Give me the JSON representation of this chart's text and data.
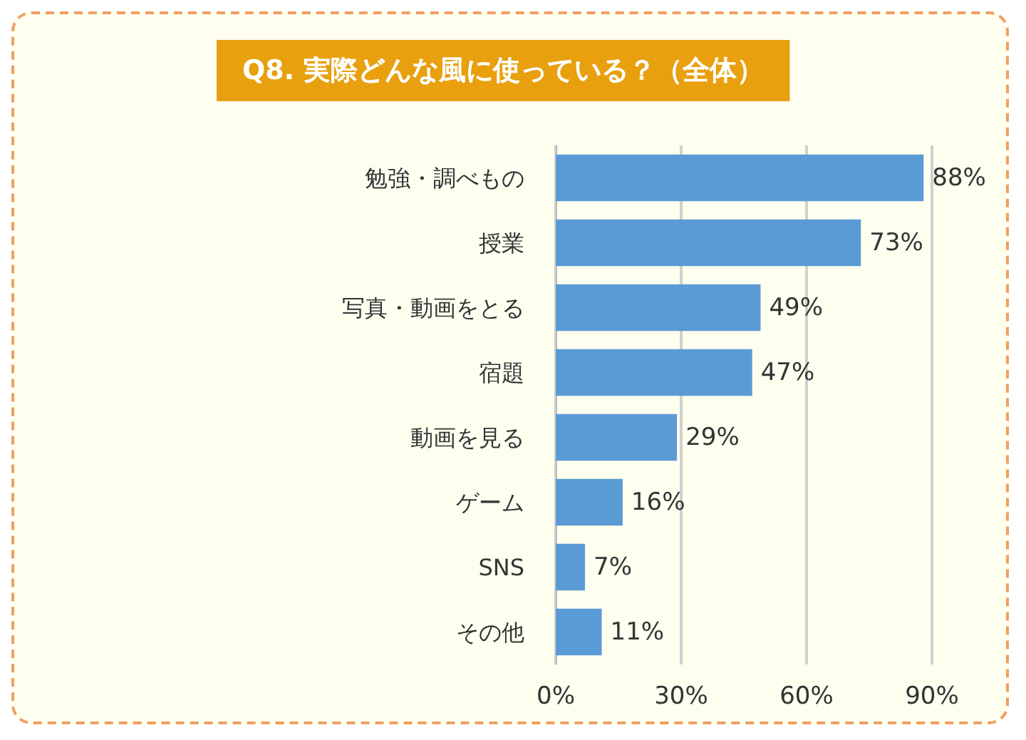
{
  "chart_data": {
    "type": "bar",
    "orientation": "horizontal",
    "title": "Q8. 実際どんな風に使っている？（全体）",
    "categories": [
      "勉強・調べもの",
      "授業",
      "写真・動画をとる",
      "宿題",
      "動画を見る",
      "ゲーム",
      "SNS",
      "その他"
    ],
    "values": [
      88,
      73,
      49,
      47,
      29,
      16,
      7,
      11
    ],
    "value_labels": [
      "88%",
      "73%",
      "49%",
      "47%",
      "29%",
      "16%",
      "7%",
      "11%"
    ],
    "color": "#5b9bd5",
    "xlim": [
      0,
      90
    ],
    "xticks": [
      {
        "value": 0,
        "label": "0%"
      },
      {
        "value": 30,
        "label": "30%"
      },
      {
        "value": 60,
        "label": "60%"
      },
      {
        "value": 90,
        "label": "90%"
      }
    ],
    "grid": "x"
  }
}
